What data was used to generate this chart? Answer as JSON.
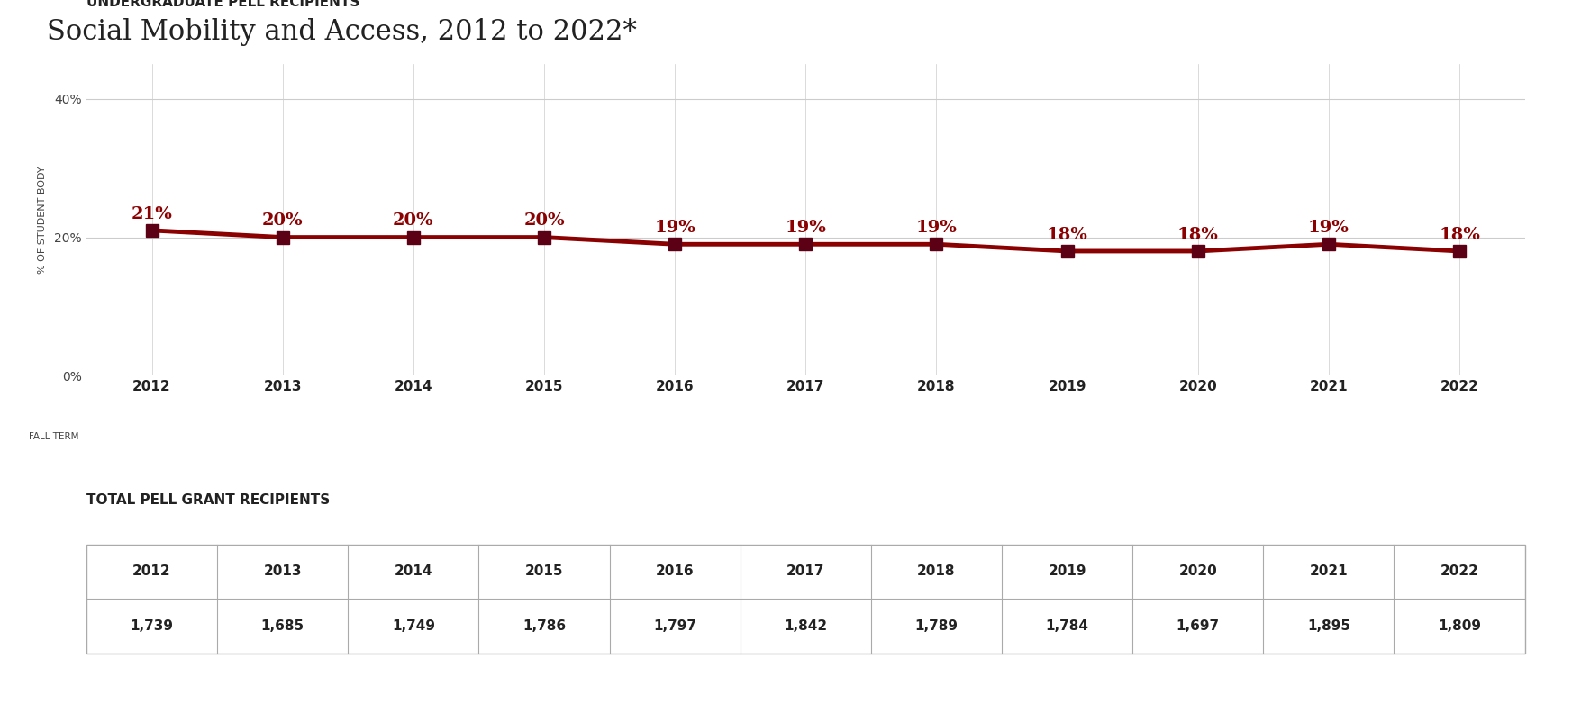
{
  "title": "Social Mobility and Access, 2012 to 2022*",
  "title_fontsize": 22,
  "title_color": "#222222",
  "section1_label": "UNDERGRADUATE PELL RECIPIENTS",
  "section2_label": "TOTAL PELL GRANT RECIPIENTS",
  "years": [
    2012,
    2013,
    2014,
    2015,
    2016,
    2017,
    2018,
    2019,
    2020,
    2021,
    2022
  ],
  "pct_values": [
    21,
    20,
    20,
    20,
    19,
    19,
    19,
    18,
    18,
    19,
    18
  ],
  "pct_labels": [
    "21%",
    "20%",
    "20%",
    "20%",
    "19%",
    "19%",
    "19%",
    "18%",
    "18%",
    "19%",
    "18%"
  ],
  "total_labels": [
    "1,739",
    "1,685",
    "1,749",
    "1,786",
    "1,797",
    "1,842",
    "1,789",
    "1,784",
    "1,697",
    "1,895",
    "1,809"
  ],
  "line_color": "#8B0000",
  "marker_color": "#5C0015",
  "ylabel": "% OF STUDENT BODY",
  "xlabel_label": "FALL TERM",
  "yticks": [
    0,
    20,
    40
  ],
  "ylim": [
    0,
    45
  ],
  "background_color": "#ffffff",
  "section_label_fontsize": 11,
  "axis_label_fontsize": 8,
  "annotation_fontsize": 14,
  "line_width": 3.5,
  "marker_size": 10
}
